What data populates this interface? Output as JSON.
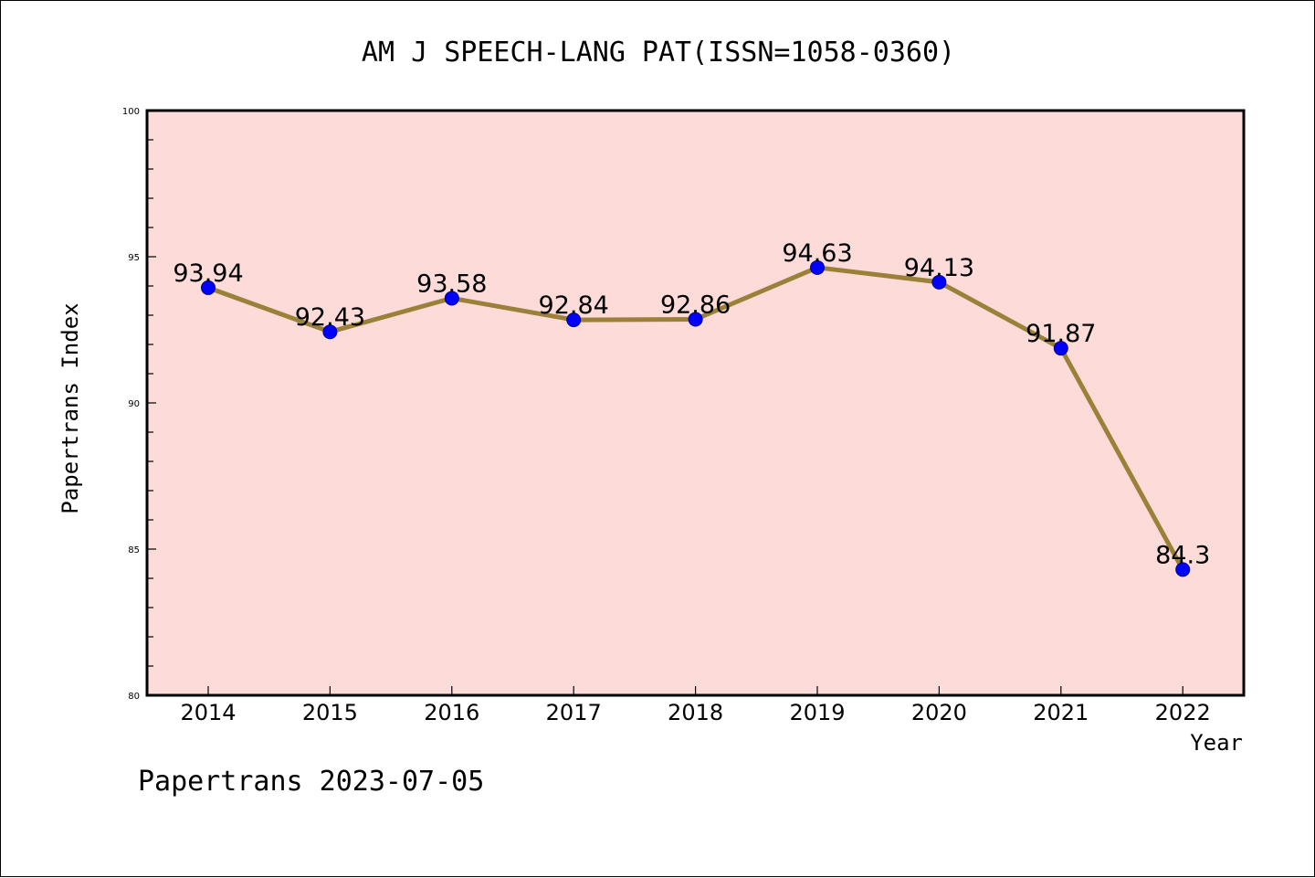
{
  "chart_data": {
    "type": "line",
    "title": "AM J SPEECH-LANG PAT(ISSN=1058-0360)",
    "xlabel": "Year",
    "ylabel": "Papertrans Index",
    "categories": [
      "2014",
      "2015",
      "2016",
      "2017",
      "2018",
      "2019",
      "2020",
      "2021",
      "2022"
    ],
    "values": [
      93.94,
      92.43,
      93.58,
      92.84,
      92.86,
      94.63,
      94.13,
      91.87,
      84.3
    ],
    "data_labels": [
      "93.94",
      "92.43",
      "93.58",
      "92.84",
      "92.86",
      "94.63",
      "94.13",
      "91.87",
      "84.3"
    ],
    "ylim": [
      80,
      100
    ],
    "yticks": [
      "80",
      "85",
      "90",
      "95",
      "100"
    ],
    "minor_tick_step": 1,
    "grid": false,
    "legend": "none",
    "colors": {
      "plot_background": "#fddbd8",
      "line": "#9a8039",
      "marker_fill": "#0000ff",
      "marker_stroke": "#00008b"
    }
  },
  "footer": {
    "text": "Papertrans 2023-07-05"
  }
}
